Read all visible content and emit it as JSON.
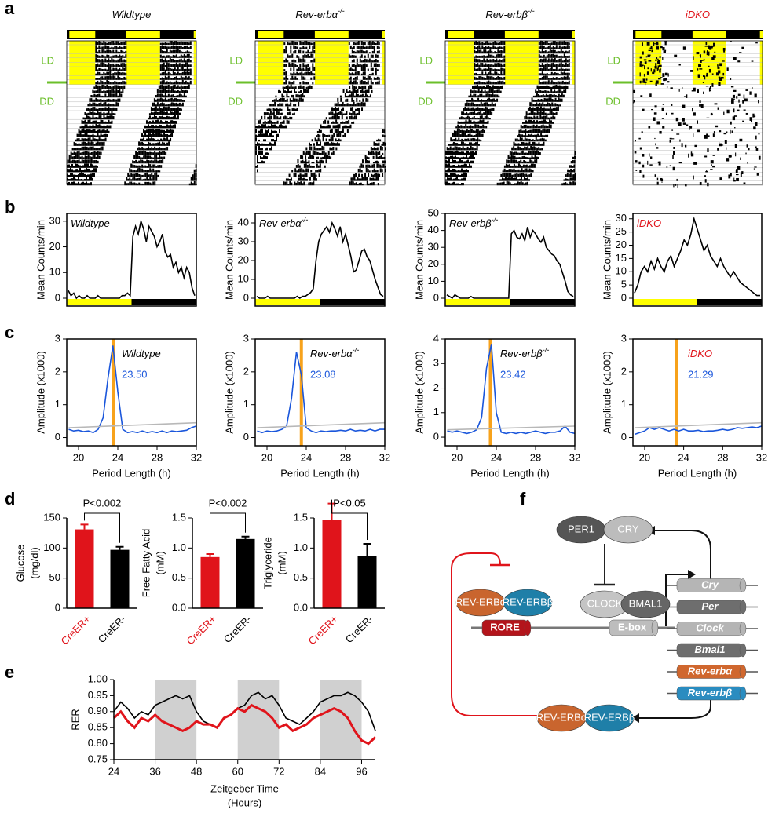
{
  "panel_labels": [
    "a",
    "b",
    "c",
    "d",
    "e",
    "f"
  ],
  "actograms": [
    {
      "title": "Wildtype"
    },
    {
      "title": "Rev-erbα",
      "title_superscript": "-/-"
    },
    {
      "title": "Rev-erbβ",
      "title_superscript": "-/-"
    },
    {
      "title": "iDKO",
      "title_color": "#e0141b"
    }
  ],
  "actogram_labels": [
    "LD",
    "DD"
  ],
  "chart_data": [
    {
      "type": "line",
      "title": "Wildtype",
      "ylabel": "Mean Counts/min",
      "ylim": [
        0,
        33
      ],
      "yticks": [
        0,
        10,
        20,
        30
      ],
      "series": [
        {
          "color": "#000000",
          "values": [
            3,
            1,
            2,
            0,
            1,
            0,
            0,
            1,
            0,
            0,
            0,
            1,
            0,
            0,
            0,
            0,
            0,
            0,
            0,
            0,
            1,
            1,
            2,
            1,
            24,
            28,
            25,
            30,
            27,
            22,
            28,
            26,
            24,
            20,
            22,
            25,
            18,
            16,
            17,
            12,
            14,
            10,
            12,
            8,
            12,
            10,
            4,
            1
          ]
        }
      ]
    },
    {
      "type": "line",
      "title": "Rev-erbα",
      "title_superscript": "-/-",
      "ylabel": "Mean Counts/min",
      "ylim": [
        0,
        45
      ],
      "yticks": [
        0,
        10,
        20,
        30,
        40
      ],
      "series": [
        {
          "color": "#000000",
          "values": [
            1,
            0,
            0,
            0,
            1,
            0,
            0,
            0,
            0,
            0,
            0,
            0,
            0,
            0,
            0,
            1,
            0,
            1,
            1,
            2,
            3,
            5,
            20,
            30,
            34,
            36,
            38,
            35,
            40,
            37,
            33,
            38,
            30,
            34,
            28,
            22,
            14,
            15,
            20,
            25,
            26,
            22,
            20,
            15,
            10,
            6,
            2,
            1
          ]
        }
      ]
    },
    {
      "type": "line",
      "title": "Rev-erbβ",
      "title_superscript": "-/-",
      "ylabel": "Mean Counts/min",
      "ylim": [
        0,
        50
      ],
      "yticks": [
        0,
        10,
        20,
        30,
        40,
        50
      ],
      "series": [
        {
          "color": "#000000",
          "values": [
            2,
            1,
            0,
            2,
            1,
            0,
            0,
            0,
            0,
            1,
            0,
            0,
            0,
            0,
            0,
            0,
            0,
            0,
            0,
            0,
            0,
            0,
            0,
            0,
            38,
            40,
            36,
            35,
            38,
            34,
            42,
            36,
            40,
            38,
            35,
            33,
            36,
            30,
            28,
            26,
            25,
            22,
            20,
            15,
            10,
            4,
            2,
            1
          ]
        }
      ]
    },
    {
      "type": "line",
      "title": "iDKO",
      "title_color": "#e0141b",
      "ylabel": "Mean Counts/min",
      "ylim": [
        0,
        32
      ],
      "yticks": [
        0,
        5,
        10,
        15,
        20,
        25,
        30
      ],
      "series": [
        {
          "color": "#000000",
          "values": [
            2,
            5,
            10,
            12,
            10,
            14,
            11,
            15,
            12,
            10,
            14,
            16,
            12,
            15,
            18,
            22,
            20,
            24,
            30,
            26,
            22,
            18,
            20,
            16,
            14,
            12,
            15,
            12,
            10,
            8,
            10,
            8,
            6,
            5,
            4,
            3,
            2,
            1,
            1
          ]
        }
      ]
    },
    {
      "type": "line",
      "title": "Wildtype",
      "ylabel": "Amplitude (x1000)",
      "xlabel": "Period Length (h)",
      "xlim": [
        18.8,
        32
      ],
      "ylim": [
        -0.25,
        3
      ],
      "xticks": [
        20,
        24,
        28,
        32
      ],
      "yticks": [
        0,
        1,
        2,
        3
      ],
      "x": [
        19,
        19.5,
        20,
        20.5,
        21,
        21.5,
        22,
        22.5,
        23,
        23.5,
        24,
        24.5,
        25,
        25.5,
        26,
        26.5,
        27,
        27.5,
        28,
        28.5,
        29,
        29.5,
        30,
        30.5,
        31,
        31.5,
        32
      ],
      "series": [
        {
          "color": "#1a56db",
          "values": [
            0.25,
            0.2,
            0.22,
            0.18,
            0.2,
            0.15,
            0.25,
            0.6,
            1.8,
            2.8,
            1.4,
            0.25,
            0.15,
            0.18,
            0.15,
            0.2,
            0.15,
            0.18,
            0.15,
            0.2,
            0.15,
            0.2,
            0.18,
            0.2,
            0.22,
            0.3,
            0.35
          ]
        },
        {
          "color": "#b8b8b8",
          "x": [
            19,
            32
          ],
          "values": [
            0.3,
            0.45
          ]
        }
      ],
      "marker_x": 23.6,
      "marker_color": "#f7a21b",
      "period": {
        "value": 23.5,
        "label": "23.50"
      },
      "period_color": "#1a56db"
    },
    {
      "type": "line",
      "title": "Rev-erbα",
      "title_superscript": "-/-",
      "ylabel": "Amplitude (x1000)",
      "xlabel": "Period Length (h)",
      "xlim": [
        18.8,
        32
      ],
      "ylim": [
        -0.25,
        3
      ],
      "xticks": [
        20,
        24,
        28,
        32
      ],
      "yticks": [
        0,
        1,
        2,
        3
      ],
      "x": [
        19,
        19.5,
        20,
        20.5,
        21,
        21.5,
        22,
        22.5,
        23,
        23.5,
        24,
        24.5,
        25,
        25.5,
        26,
        26.5,
        27,
        27.5,
        28,
        28.5,
        29,
        29.5,
        30,
        30.5,
        31,
        31.5,
        32
      ],
      "series": [
        {
          "color": "#1a56db",
          "values": [
            0.2,
            0.15,
            0.2,
            0.18,
            0.2,
            0.25,
            0.35,
            1.2,
            2.6,
            1.9,
            0.3,
            0.2,
            0.15,
            0.2,
            0.18,
            0.2,
            0.2,
            0.22,
            0.2,
            0.25,
            0.2,
            0.22,
            0.2,
            0.25,
            0.2,
            0.25,
            0.25
          ]
        },
        {
          "color": "#b8b8b8",
          "x": [
            19,
            32
          ],
          "values": [
            0.3,
            0.45
          ]
        }
      ],
      "marker_x": 23.5,
      "marker_color": "#f7a21b",
      "period": {
        "value": 23.08,
        "label": "23.08"
      },
      "period_color": "#1a56db"
    },
    {
      "type": "line",
      "title": "Rev-erbβ",
      "title_superscript": "-/-",
      "ylabel": "Amplitude (x1000)",
      "xlabel": "Period Length (h)",
      "xlim": [
        18.8,
        32
      ],
      "ylim": [
        -0.35,
        4
      ],
      "xticks": [
        20,
        24,
        28,
        32
      ],
      "yticks": [
        0,
        1,
        2,
        3,
        4
      ],
      "x": [
        19,
        19.5,
        20,
        20.5,
        21,
        21.5,
        22,
        22.5,
        23,
        23.5,
        24,
        24.5,
        25,
        25.5,
        26,
        26.5,
        27,
        27.5,
        28,
        28.5,
        29,
        29.5,
        30,
        30.5,
        31,
        31.5,
        32
      ],
      "series": [
        {
          "color": "#1a56db",
          "values": [
            0.25,
            0.2,
            0.25,
            0.2,
            0.15,
            0.2,
            0.3,
            0.8,
            2.8,
            3.8,
            1.0,
            0.2,
            0.15,
            0.2,
            0.15,
            0.2,
            0.15,
            0.2,
            0.25,
            0.2,
            0.15,
            0.2,
            0.2,
            0.25,
            0.45,
            0.2,
            0.15
          ]
        },
        {
          "color": "#b8b8b8",
          "x": [
            19,
            32
          ],
          "values": [
            0.3,
            0.45
          ]
        }
      ],
      "marker_x": 23.4,
      "marker_color": "#f7a21b",
      "period": {
        "value": 23.42,
        "label": "23.42"
      },
      "period_color": "#1a56db"
    },
    {
      "type": "line",
      "title": "iDKO",
      "title_color": "#e0141b",
      "ylabel": "Amplitude (x1000)",
      "xlabel": "Period Length (h)",
      "xlim": [
        18.8,
        32
      ],
      "ylim": [
        -0.25,
        3
      ],
      "xticks": [
        20,
        24,
        28,
        32
      ],
      "yticks": [
        0,
        1,
        2,
        3
      ],
      "x": [
        19,
        19.5,
        20,
        20.5,
        21,
        21.5,
        22,
        22.5,
        23,
        23.5,
        24,
        24.5,
        25,
        25.5,
        26,
        26.5,
        27,
        27.5,
        28,
        28.5,
        29,
        29.5,
        30,
        30.5,
        31,
        31.5,
        32
      ],
      "series": [
        {
          "color": "#1a56db",
          "values": [
            0.1,
            0.15,
            0.2,
            0.3,
            0.25,
            0.3,
            0.25,
            0.2,
            0.25,
            0.2,
            0.25,
            0.2,
            0.2,
            0.22,
            0.18,
            0.2,
            0.2,
            0.22,
            0.25,
            0.22,
            0.25,
            0.3,
            0.28,
            0.3,
            0.32,
            0.3,
            0.35
          ]
        },
        {
          "color": "#b8b8b8",
          "x": [
            19,
            32
          ],
          "values": [
            0.3,
            0.45
          ]
        }
      ],
      "marker_x": 23.3,
      "marker_color": "#f7a21b",
      "period": {
        "value": 21.29,
        "label": "21.29"
      },
      "period_color": "#1a56db"
    },
    {
      "type": "bar",
      "ylabel": "Glucose",
      "yunit": "(mg/dl)",
      "categories": [
        "CreER+",
        "CreER-"
      ],
      "colors": [
        "#e0141b",
        "#000000"
      ],
      "values": [
        131,
        97
      ],
      "errors": [
        8,
        5
      ],
      "ylim": [
        0,
        150
      ],
      "yticks": [
        0,
        50,
        100,
        150
      ],
      "annotation": "P<0.002"
    },
    {
      "type": "bar",
      "ylabel": "Free Fatty Acid",
      "yunit": "(mM)",
      "categories": [
        "CreER+",
        "CreER-"
      ],
      "colors": [
        "#e0141b",
        "#000000"
      ],
      "values": [
        0.85,
        1.15
      ],
      "errors": [
        0.05,
        0.04
      ],
      "ylim": [
        0,
        1.5
      ],
      "yticks": [
        {
          "value": 0,
          "label": "0.0"
        },
        0.5,
        {
          "value": 1,
          "label": "1.0"
        },
        1.5
      ],
      "annotation": "P<0.002"
    },
    {
      "type": "bar",
      "ylabel": "Triglyceride",
      "yunit": "(mM)",
      "categories": [
        "CreER+",
        "CreER-"
      ],
      "colors": [
        "#e0141b",
        "#000000"
      ],
      "values": [
        1.47,
        0.87
      ],
      "errors": [
        0.27,
        0.2
      ],
      "ylim": [
        0,
        1.5
      ],
      "yticks": [
        {
          "value": 0,
          "label": "0.0"
        },
        0.5,
        {
          "value": 1,
          "label": "1.0"
        },
        1.5
      ],
      "annotation": "P<0.05"
    },
    {
      "type": "line",
      "ylabel": "RER",
      "xlabel": "Zeitgeber Time",
      "xlabel_line2": "(Hours)",
      "x": [
        24,
        26,
        28,
        30,
        32,
        34,
        36,
        38,
        40,
        42,
        44,
        46,
        48,
        50,
        52,
        54,
        56,
        58,
        60,
        62,
        64,
        66,
        68,
        70,
        72,
        74,
        76,
        78,
        80,
        82,
        84,
        86,
        88,
        90,
        92,
        94,
        96,
        98,
        100
      ],
      "xlim": [
        24,
        100
      ],
      "ylim": [
        0.75,
        1.0
      ],
      "xticks": [
        24,
        36,
        48,
        60,
        72,
        84,
        96
      ],
      "yticks": [
        0.75,
        {
          "value": 0.8,
          "label": "0.80"
        },
        0.85,
        {
          "value": 0.9,
          "label": "0.90"
        },
        0.95,
        {
          "value": 1,
          "label": "1.00"
        }
      ],
      "shaded_spans": [
        [
          36,
          48
        ],
        [
          60,
          72
        ],
        [
          84,
          96
        ]
      ],
      "series": [
        {
          "color": "#000000",
          "values": [
            0.9,
            0.93,
            0.91,
            0.88,
            0.9,
            0.89,
            0.92,
            0.93,
            0.94,
            0.95,
            0.94,
            0.95,
            0.9,
            0.87,
            0.86,
            0.85,
            0.88,
            0.89,
            0.91,
            0.92,
            0.95,
            0.96,
            0.94,
            0.95,
            0.92,
            0.88,
            0.87,
            0.86,
            0.88,
            0.9,
            0.93,
            0.94,
            0.95,
            0.95,
            0.96,
            0.95,
            0.93,
            0.9,
            0.84
          ]
        },
        {
          "color": "#e0141b",
          "values": [
            0.88,
            0.9,
            0.87,
            0.85,
            0.88,
            0.87,
            0.89,
            0.87,
            0.86,
            0.85,
            0.84,
            0.85,
            0.87,
            0.86,
            0.86,
            0.85,
            0.88,
            0.89,
            0.91,
            0.9,
            0.92,
            0.91,
            0.9,
            0.88,
            0.85,
            0.86,
            0.84,
            0.85,
            0.86,
            0.88,
            0.89,
            0.9,
            0.91,
            0.9,
            0.88,
            0.84,
            0.81,
            0.8,
            0.82
          ]
        }
      ]
    }
  ],
  "diagram": {
    "proteins": [
      "PER1",
      "CRY",
      "CLOCK",
      "BMAL1",
      "REV-ERBα",
      "REV-ERBβ",
      "REV-ERBα",
      "REV-ERBβ"
    ],
    "elements": [
      "RORE",
      "E-box"
    ],
    "genes": [
      "Cry",
      "Per",
      "Clock",
      "Bmal1",
      "Rev-erbα",
      "Rev-erbβ"
    ]
  }
}
